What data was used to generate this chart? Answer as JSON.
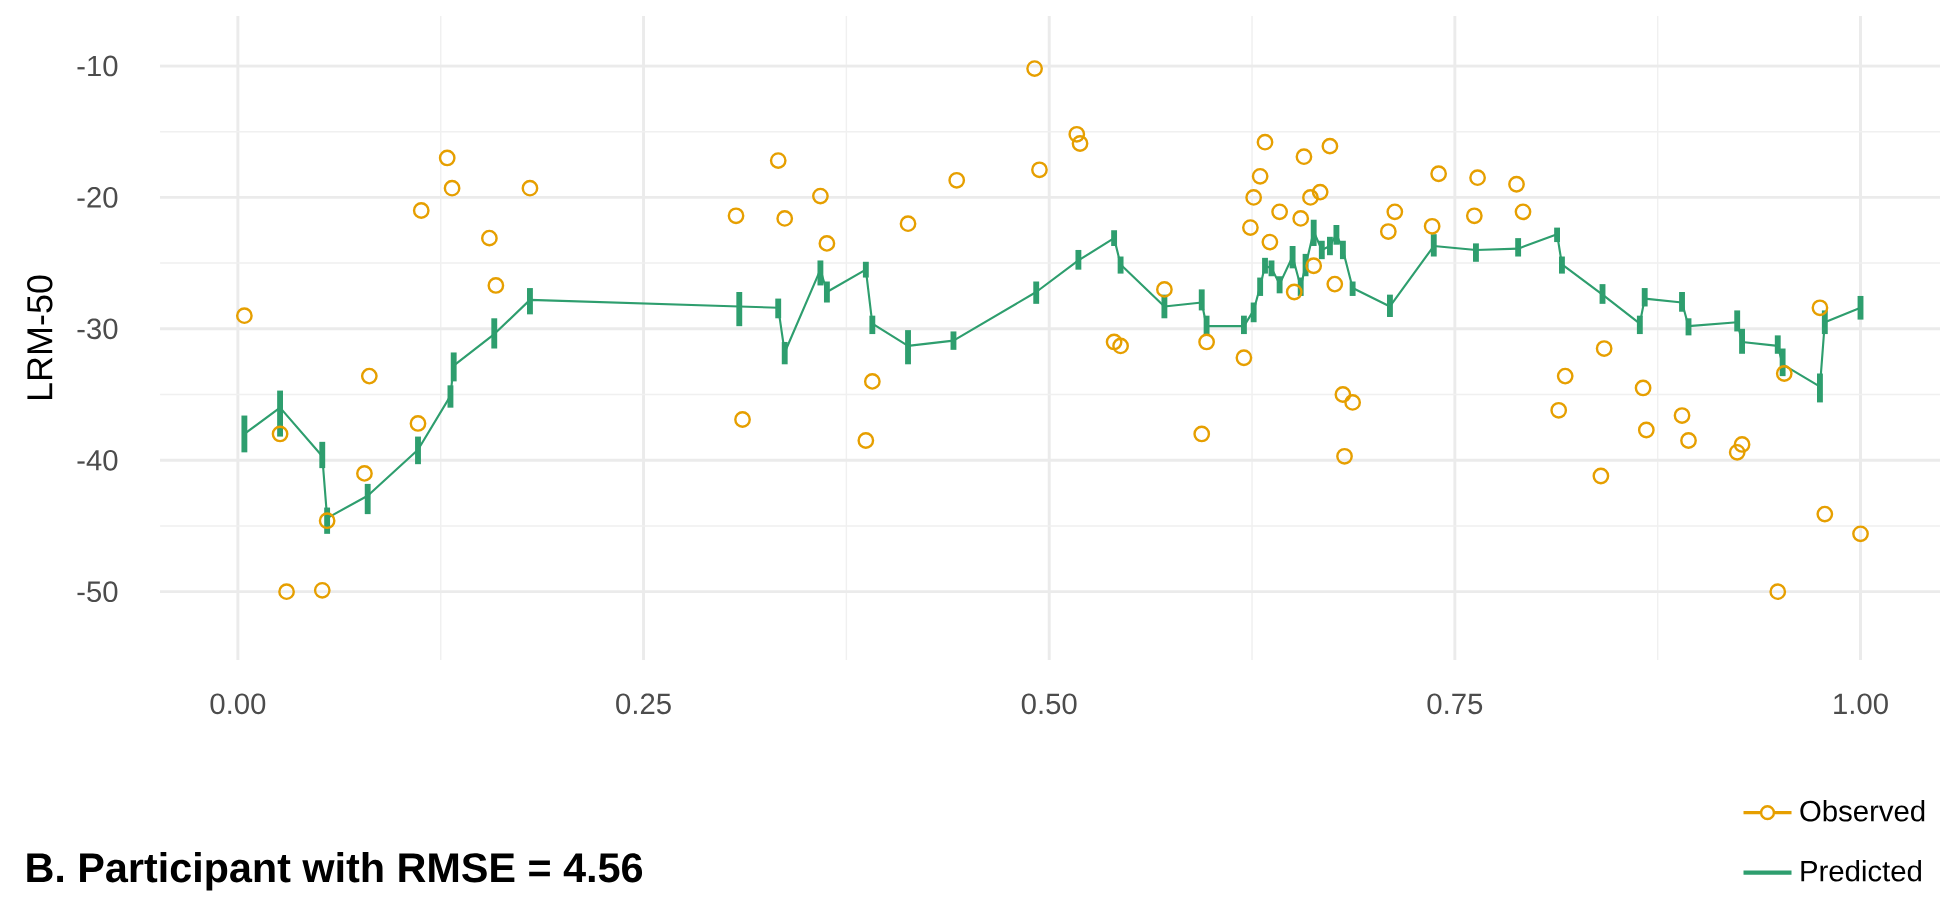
{
  "chart_data": {
    "type": "scatter",
    "title": "B. Participant with RMSE = 4.56",
    "ylabel": "LRM-50",
    "xlim": [
      -0.048,
      1.049
    ],
    "ylim": [
      -55.2,
      -6.2
    ],
    "xticks": [
      {
        "value": 0,
        "label": "0.00"
      },
      {
        "value": 0.25,
        "label": "0.25"
      },
      {
        "value": 0.5,
        "label": "0.50"
      },
      {
        "value": 0.75,
        "label": "0.75"
      },
      {
        "value": 1,
        "label": "1.00"
      }
    ],
    "yticks": [
      -50,
      -40,
      -30,
      -20,
      -10
    ],
    "grid": true,
    "legend": "bottom right",
    "series": [
      {
        "name": "Observed",
        "type": "scatter",
        "marker": "circle",
        "color": "#e69f00",
        "x": [
          0.004,
          0.026,
          0.03,
          0.052,
          0.055,
          0.078,
          0.081,
          0.111,
          0.113,
          0.129,
          0.132,
          0.155,
          0.159,
          0.18,
          0.307,
          0.311,
          0.333,
          0.337,
          0.359,
          0.363,
          0.387,
          0.391,
          0.413,
          0.443,
          0.491,
          0.494,
          0.517,
          0.519,
          0.54,
          0.544,
          0.571,
          0.594,
          0.597,
          0.62,
          0.624,
          0.626,
          0.63,
          0.633,
          0.636,
          0.642,
          0.651,
          0.655,
          0.657,
          0.661,
          0.663,
          0.667,
          0.673,
          0.676,
          0.681,
          0.682,
          0.687,
          0.709,
          0.713,
          0.736,
          0.74,
          0.762,
          0.764,
          0.788,
          0.792,
          0.814,
          0.818,
          0.84,
          0.842,
          0.866,
          0.868,
          0.89,
          0.894,
          0.924,
          0.927,
          0.949,
          0.953,
          0.975,
          0.978,
          1.0
        ],
        "values": [
          -29.0,
          -38.0,
          -50.0,
          -49.9,
          -44.6,
          -41.0,
          -33.6,
          -37.2,
          -21.0,
          -17.0,
          -19.3,
          -23.1,
          -26.7,
          -19.3,
          -21.4,
          -36.9,
          -17.2,
          -21.6,
          -19.9,
          -23.5,
          -38.5,
          -34.0,
          -22.0,
          -18.7,
          -10.2,
          -17.9,
          -15.2,
          -15.9,
          -31.0,
          -31.3,
          -27.0,
          -38.0,
          -31.0,
          -32.2,
          -22.3,
          -20.0,
          -18.4,
          -15.8,
          -23.4,
          -21.1,
          -27.2,
          -21.6,
          -16.9,
          -20.0,
          -25.2,
          -19.6,
          -16.1,
          -26.6,
          -35.0,
          -39.7,
          -35.6,
          -22.6,
          -21.1,
          -22.2,
          -18.2,
          -21.4,
          -18.5,
          -19.0,
          -21.1,
          -36.2,
          -33.6,
          -41.2,
          -31.5,
          -34.5,
          -37.7,
          -36.6,
          -38.5,
          -39.4,
          -38.8,
          -50.0,
          -33.4,
          -28.4,
          -44.1,
          -45.6
        ]
      },
      {
        "name": "Predicted",
        "type": "line",
        "marker": "none",
        "line_style": "solid",
        "color": "#2e9e6e",
        "x": [
          0.004,
          0.026,
          0.052,
          0.055,
          0.08,
          0.111,
          0.131,
          0.133,
          0.158,
          0.18,
          0.309,
          0.333,
          0.337,
          0.359,
          0.363,
          0.387,
          0.391,
          0.413,
          0.441,
          0.492,
          0.518,
          0.54,
          0.544,
          0.571,
          0.594,
          0.597,
          0.62,
          0.626,
          0.63,
          0.633,
          0.637,
          0.642,
          0.65,
          0.655,
          0.658,
          0.663,
          0.668,
          0.673,
          0.677,
          0.681,
          0.687,
          0.71,
          0.737,
          0.763,
          0.789,
          0.813,
          0.816,
          0.841,
          0.864,
          0.867,
          0.89,
          0.894,
          0.924,
          0.927,
          0.949,
          0.952,
          0.975,
          0.978,
          1.0
        ],
        "values": [
          -38.0,
          -36.0,
          -39.7,
          -44.4,
          -42.7,
          -39.2,
          -35.1,
          -32.8,
          -30.4,
          -27.8,
          -28.3,
          -28.4,
          -31.8,
          -25.5,
          -27.2,
          -25.5,
          -29.6,
          -31.3,
          -30.9,
          -27.2,
          -24.8,
          -23.1,
          -25.1,
          -28.3,
          -28.0,
          -29.8,
          -29.8,
          -28.6,
          -26.8,
          -25.2,
          -25.4,
          -26.6,
          -24.5,
          -26.8,
          -25.2,
          -22.6,
          -24.0,
          -23.7,
          -22.8,
          -24.0,
          -26.9,
          -28.3,
          -23.7,
          -24.0,
          -23.9,
          -22.8,
          -25.1,
          -27.4,
          -29.6,
          -27.7,
          -28.0,
          -29.8,
          -29.5,
          -31.0,
          -31.3,
          -32.7,
          -34.4,
          -29.5,
          -28.4
        ],
        "errors": [
          [
            -39.4,
            -36.6
          ],
          [
            -38.2,
            -34.7
          ],
          [
            -40.6,
            -38.6
          ],
          [
            -45.6,
            -43.6
          ],
          [
            -44.1,
            -41.8
          ],
          [
            -40.3,
            -38.2
          ],
          [
            -36.0,
            -34.3
          ],
          [
            -34.0,
            -31.8
          ],
          [
            -31.5,
            -29.2
          ],
          [
            -28.9,
            -26.9
          ],
          [
            -29.8,
            -27.2
          ],
          [
            -29.2,
            -27.7
          ],
          [
            -32.7,
            -31.0
          ],
          [
            -26.7,
            -24.8
          ],
          [
            -28.0,
            -26.4
          ],
          [
            -26.1,
            -24.9
          ],
          [
            -30.4,
            -29.0
          ],
          [
            -32.7,
            -30.1
          ],
          [
            -31.6,
            -30.2
          ],
          [
            -28.1,
            -26.4
          ],
          [
            -25.5,
            -24.0
          ],
          [
            -23.7,
            -22.5
          ],
          [
            -25.8,
            -24.5
          ],
          [
            -29.2,
            -27.4
          ],
          [
            -28.6,
            -27.0
          ],
          [
            -30.5,
            -29.0
          ],
          [
            -30.4,
            -29.0
          ],
          [
            -29.5,
            -28.0
          ],
          [
            -27.5,
            -26.1
          ],
          [
            -25.8,
            -24.6
          ],
          [
            -26.0,
            -24.8
          ],
          [
            -27.3,
            -26.0
          ],
          [
            -25.4,
            -23.7
          ],
          [
            -27.5,
            -26.1
          ],
          [
            -26.0,
            -24.3
          ],
          [
            -23.7,
            -21.7
          ],
          [
            -24.7,
            -23.3
          ],
          [
            -24.4,
            -23.0
          ],
          [
            -23.6,
            -22.1
          ],
          [
            -24.7,
            -23.3
          ],
          [
            -27.5,
            -26.4
          ],
          [
            -29.1,
            -27.4
          ],
          [
            -24.5,
            -22.8
          ],
          [
            -24.9,
            -23.5
          ],
          [
            -24.5,
            -23.1
          ],
          [
            -23.4,
            -22.3
          ],
          [
            -25.8,
            -24.5
          ],
          [
            -28.1,
            -26.6
          ],
          [
            -30.4,
            -29.0
          ],
          [
            -28.3,
            -26.9
          ],
          [
            -28.7,
            -27.2
          ],
          [
            -30.5,
            -29.2
          ],
          [
            -30.2,
            -28.6
          ],
          [
            -31.9,
            -30.0
          ],
          [
            -31.9,
            -30.5
          ],
          [
            -33.6,
            -31.5
          ],
          [
            -35.6,
            -33.4
          ],
          [
            -30.4,
            -28.6
          ],
          [
            -29.3,
            -27.5
          ]
        ]
      }
    ]
  }
}
